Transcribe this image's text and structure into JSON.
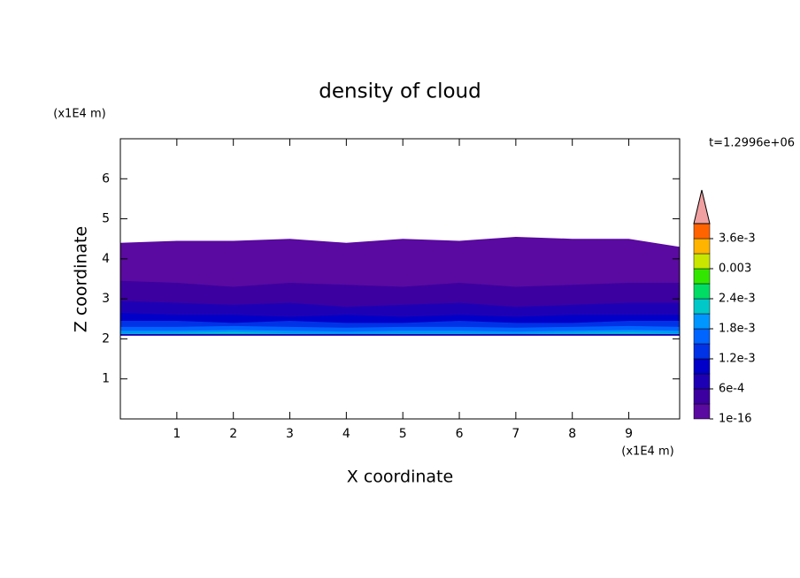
{
  "chart_data": {
    "type": "contour",
    "title": "density of cloud",
    "x_label": "X coordinate",
    "y_label": "Z coordinate",
    "x_unit": "(x1E4 m)",
    "y_unit": "(x1E4 m)",
    "time_label": "t=1.2996e+06",
    "xlim": [
      0,
      9.9
    ],
    "ylim": [
      0,
      7
    ],
    "xticks": [
      1,
      2,
      3,
      4,
      5,
      6,
      7,
      8,
      9
    ],
    "yticks": [
      1,
      2,
      3,
      4,
      5,
      6
    ],
    "x": [
      0,
      1,
      2,
      3,
      4,
      5,
      6,
      7,
      8,
      9,
      9.9
    ],
    "cloud_base": 2.1,
    "contours": [
      {
        "level": 1e-16,
        "top": [
          4.4,
          4.45,
          4.45,
          4.5,
          4.4,
          4.5,
          4.45,
          4.55,
          4.5,
          4.5,
          4.3
        ]
      },
      {
        "level": 0.0003,
        "top": [
          3.45,
          3.4,
          3.3,
          3.4,
          3.35,
          3.3,
          3.4,
          3.3,
          3.35,
          3.4,
          3.4
        ]
      },
      {
        "level": 0.0006,
        "top": [
          2.95,
          2.9,
          2.85,
          2.9,
          2.8,
          2.85,
          2.9,
          2.8,
          2.85,
          2.9,
          2.9
        ]
      },
      {
        "level": 0.0009,
        "top": [
          2.65,
          2.6,
          2.6,
          2.55,
          2.6,
          2.55,
          2.6,
          2.55,
          2.6,
          2.6,
          2.6
        ]
      },
      {
        "level": 0.0012,
        "top": [
          2.45,
          2.45,
          2.4,
          2.45,
          2.4,
          2.4,
          2.45,
          2.4,
          2.4,
          2.45,
          2.45
        ]
      },
      {
        "level": 0.0015,
        "top": [
          2.3,
          2.3,
          2.32,
          2.3,
          2.28,
          2.3,
          2.3,
          2.28,
          2.3,
          2.32,
          2.3
        ]
      },
      {
        "level": 0.0018,
        "top": [
          2.2,
          2.2,
          2.22,
          2.2,
          2.18,
          2.2,
          2.2,
          2.18,
          2.2,
          2.22,
          2.2
        ]
      },
      {
        "level": 0.0021,
        "top": [
          2.14,
          2.15,
          2.17,
          2.14,
          2.13,
          2.14,
          2.14,
          2.13,
          2.15,
          2.16,
          2.14
        ]
      }
    ],
    "levels": [
      1e-16,
      0.0003,
      0.0006,
      0.0009,
      0.0012,
      0.0015,
      0.0018,
      0.0021,
      0.0024,
      0.0027,
      0.003,
      0.0033,
      0.0036,
      0.0039
    ],
    "colors": [
      "#5a0aa0",
      "#3c00a0",
      "#1e00b4",
      "#0000c8",
      "#0032e6",
      "#0064ff",
      "#0096ff",
      "#00c8c8",
      "#00dc64",
      "#32e600",
      "#c8e600",
      "#ffb400",
      "#ff6400"
    ],
    "extend_color": "#f0a0a0",
    "colorbar_ticks": [
      {
        "value": 1e-16,
        "label": "1e-16"
      },
      {
        "value": 0.0006,
        "label": "6e-4"
      },
      {
        "value": 0.0012,
        "label": "1.2e-3"
      },
      {
        "value": 0.0018,
        "label": "1.8e-3"
      },
      {
        "value": 0.0024,
        "label": "2.4e-3"
      },
      0.003,
      {
        "value": 0.0036,
        "label": "3.6e-3"
      }
    ]
  }
}
